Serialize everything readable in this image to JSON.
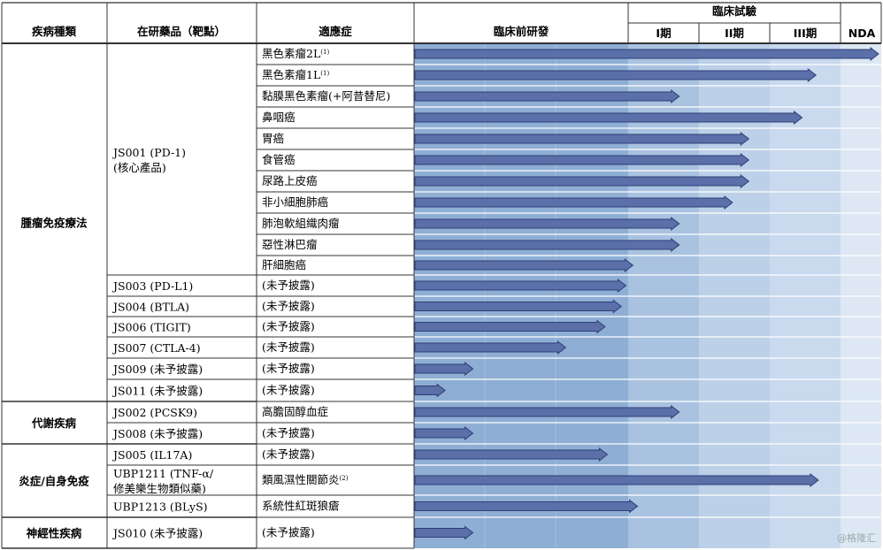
{
  "headers": {
    "disease": "疾病種類",
    "product": "在研藥品（靶點）",
    "indication": "適應症",
    "preclinical": "臨床前研發",
    "clinical": "臨床試驗",
    "phase1": "I期",
    "phase2": "II期",
    "phase3": "III期",
    "nda": "NDA"
  },
  "groups": [
    {
      "label": "腫瘤免疫療法"
    },
    {
      "label": "代謝疾病"
    },
    {
      "label": "炎症/自身免疫"
    },
    {
      "label": "神經性疾病"
    }
  ],
  "products": [
    {
      "label": "JS001 (PD-1)",
      "label2": "(核心產品)"
    },
    {
      "label": "JS003 (PD-L1)"
    },
    {
      "label": "JS004 (BTLA)"
    },
    {
      "label": "JS006 (TIGIT)"
    },
    {
      "label": "JS007 (CTLA-4)"
    },
    {
      "label": "JS009 (未予披露)"
    },
    {
      "label": "JS011 (未予披露)"
    },
    {
      "label": "JS002 (PCSK9)"
    },
    {
      "label": "JS008 (未予披露)"
    },
    {
      "label": "JS005 (IL17A)"
    },
    {
      "label": "UBP1211 (TNF-α/",
      "label2": "修美樂生物類似藥)"
    },
    {
      "label": "UBP1213 (BLyS)"
    },
    {
      "label": "JS010 (未予披露)"
    }
  ],
  "rows": [
    {
      "indication": "黑色素瘤2L",
      "note": "(1)",
      "progress": 1.0
    },
    {
      "indication": "黑色素瘤1L",
      "note": "(1)",
      "progress": 0.865
    },
    {
      "indication": "黏膜黑色素瘤(+阿昔替尼)",
      "note": "",
      "progress": 0.57
    },
    {
      "indication": "鼻咽癌",
      "note": "",
      "progress": 0.835
    },
    {
      "indication": "胃癌",
      "note": "",
      "progress": 0.72
    },
    {
      "indication": "食管癌",
      "note": "",
      "progress": 0.72
    },
    {
      "indication": "尿路上皮癌",
      "note": "",
      "progress": 0.72
    },
    {
      "indication": "非小細胞肺癌",
      "note": "",
      "progress": 0.685
    },
    {
      "indication": "肺泡軟組織肉瘤",
      "note": "",
      "progress": 0.57
    },
    {
      "indication": "惡性淋巴瘤",
      "note": "",
      "progress": 0.57
    },
    {
      "indication": "肝細胞癌",
      "note": "",
      "progress": 0.47
    },
    {
      "indication": "(未予披露)",
      "note": "",
      "progress": 0.455
    },
    {
      "indication": "(未予披露)",
      "note": "",
      "progress": 0.445
    },
    {
      "indication": "(未予披露)",
      "note": "",
      "progress": 0.41
    },
    {
      "indication": "(未予披露)",
      "note": "",
      "progress": 0.325
    },
    {
      "indication": "(未予披露)",
      "note": "",
      "progress": 0.125
    },
    {
      "indication": "(未予披露)",
      "note": "",
      "progress": 0.065
    },
    {
      "indication": "高膽固醇血症",
      "note": "",
      "progress": 0.57
    },
    {
      "indication": "(未予披露)",
      "note": "",
      "progress": 0.125
    },
    {
      "indication": "(未予披露)",
      "note": "",
      "progress": 0.415
    },
    {
      "indication": "類風濕性關節炎",
      "note": "(2)",
      "progress": 0.87
    },
    {
      "indication": "系統性紅斑狼瘡",
      "note": "",
      "progress": 0.48
    },
    {
      "indication": "(未予披露)",
      "note": "",
      "progress": 0.125
    }
  ],
  "colors": {
    "preclinical": "#8eaed4",
    "phase1": "#a9c2e0",
    "phase2": "#bcd0e8",
    "phase3": "#c9d9ee",
    "nda": "#dde8f4",
    "arrow": "#5b6fa8",
    "arrow_edge": "#2e3f78",
    "grid": "#ffffff",
    "line": "#333333"
  },
  "watermark": "@格隆汇"
}
